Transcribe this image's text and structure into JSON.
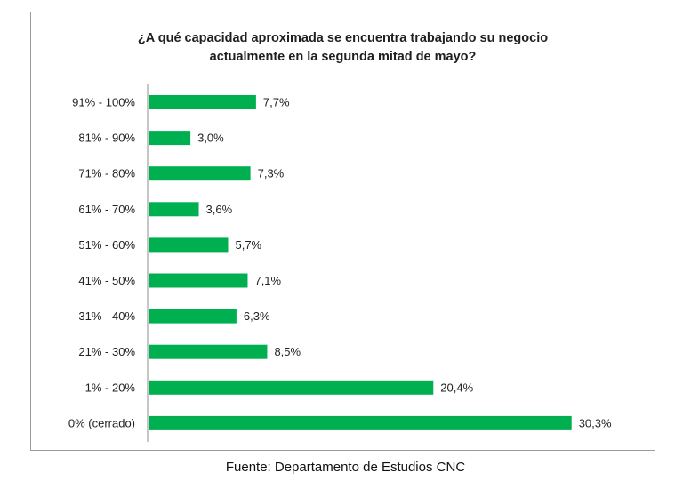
{
  "chart_data": {
    "type": "bar",
    "orientation": "horizontal",
    "title_lines": [
      "¿A qué capacidad aproximada se encuentra trabajando su negocio",
      "actualmente en la segunda mitad de mayo?"
    ],
    "categories": [
      "91% - 100%",
      "81% - 90%",
      "71% - 80%",
      "61% - 70%",
      "51% - 60%",
      "41% - 50%",
      "31% - 40%",
      "21% - 30%",
      "1% - 20%",
      "0% (cerrado)"
    ],
    "values": [
      7.7,
      3.0,
      7.3,
      3.6,
      5.7,
      7.1,
      6.3,
      8.5,
      20.4,
      30.3
    ],
    "value_labels": [
      "7,7%",
      "3,0%",
      "7,3%",
      "3,6%",
      "5,7%",
      "7,1%",
      "6,3%",
      "8,5%",
      "20,4%",
      "30,3%"
    ],
    "bar_color": "#00b050",
    "grid": false,
    "legend": "none"
  },
  "source": "Fuente: Departamento de Estudios CNC"
}
